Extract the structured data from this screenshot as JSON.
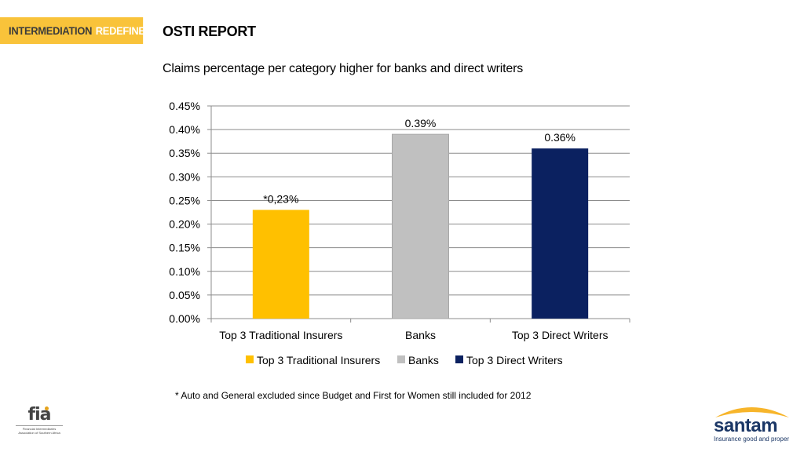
{
  "header": {
    "banner_part1": "INTERMEDIATION",
    "banner_part2": "REDEFINED",
    "report_title": "OSTI REPORT",
    "subtitle": "Claims percentage per category higher for banks and direct writers"
  },
  "footnote": "* Auto and General excluded since Budget and First for Women still included for 2012",
  "logos": {
    "fia": {
      "text": "fia",
      "subtext": "Financial Intermediaries Association of Southern Africa",
      "accent_color": "#e4a21b"
    },
    "santam": {
      "text": "santam",
      "tagline": "Insurance good and proper",
      "color": "#1b3766",
      "arc_color": "#f7b52b"
    }
  },
  "chart_data": {
    "type": "bar",
    "title": "",
    "xlabel": "",
    "ylabel": "",
    "categories": [
      "Top 3 Traditional Insurers",
      "Banks",
      "Top 3 Direct Writers"
    ],
    "values": [
      0.23,
      0.39,
      0.36
    ],
    "data_labels": [
      "*0,23%",
      "0.39%",
      "0.36%"
    ],
    "colors": [
      "#ffc000",
      "#c0c0c0",
      "#0b2160"
    ],
    "ylim": [
      0,
      0.45
    ],
    "yticks": [
      0.0,
      0.05,
      0.1,
      0.15,
      0.2,
      0.25,
      0.3,
      0.35,
      0.4,
      0.45
    ],
    "ytick_labels": [
      "0.00%",
      "0.05%",
      "0.10%",
      "0.15%",
      "0.20%",
      "0.25%",
      "0.30%",
      "0.35%",
      "0.40%",
      "0.45%"
    ],
    "grid": true,
    "legend": {
      "position": "bottom",
      "entries": [
        "Top 3 Traditional Insurers",
        "Banks",
        "Top 3 Direct Writers"
      ]
    }
  }
}
